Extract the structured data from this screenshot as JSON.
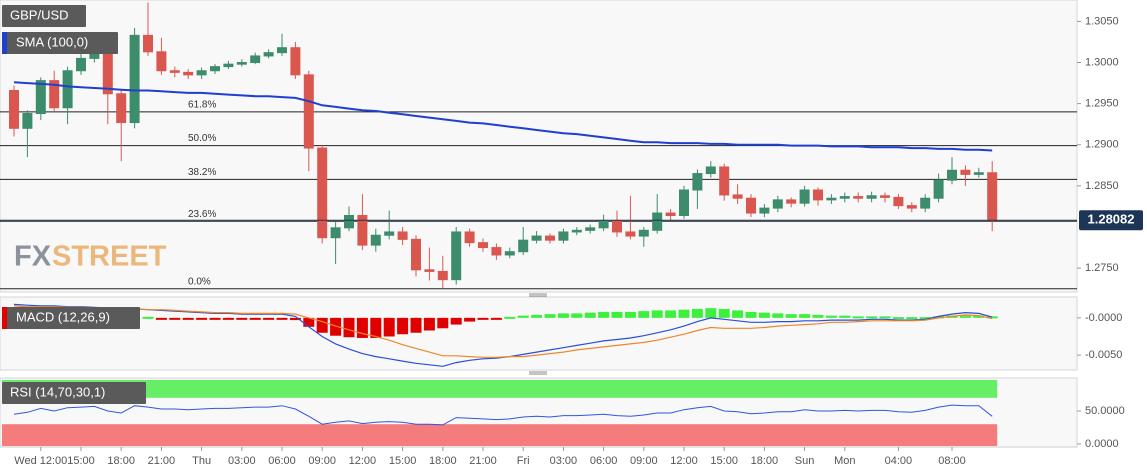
{
  "chart_data": [
    {
      "type": "candlestick",
      "title": "GBP/USD",
      "categories": [
        null,
        null,
        "Wed 12:00",
        null,
        null,
        "15:00",
        null,
        null,
        "18:00",
        null,
        null,
        "21:00",
        null,
        null,
        "Thu",
        null,
        null,
        "03:00",
        null,
        null,
        "06:00",
        null,
        null,
        "09:00",
        null,
        null,
        "12:00",
        null,
        null,
        "15:00",
        null,
        null,
        "18:00",
        null,
        null,
        "21:00",
        null,
        null,
        "Fri",
        null,
        null,
        "03:00",
        null,
        null,
        "06:00",
        null,
        null,
        "09:00",
        null,
        null,
        "12:00",
        null,
        null,
        "15:00",
        null,
        null,
        "18:00",
        null,
        null,
        "Sun",
        null,
        null,
        "Mon",
        null,
        null,
        null,
        "04:00",
        null,
        null,
        null,
        "08:00",
        null,
        null,
        null
      ],
      "open": [
        1.2966,
        1.292,
        1.2938,
        1.2978,
        1.2945,
        1.299,
        1.3005,
        1.3012,
        1.2962,
        1.2927,
        1.3033,
        1.3013,
        1.299,
        1.2988,
        1.2985,
        1.299,
        1.2995,
        1.2998,
        1.3,
        1.3008,
        1.3012,
        1.3018,
        1.2985,
        1.2896,
        1.2787,
        1.2799,
        1.2814,
        1.2778,
        1.279,
        1.2794,
        1.2785,
        1.2748,
        1.2746,
        1.2736,
        1.2794,
        1.2781,
        1.2775,
        1.2766,
        1.277,
        1.2784,
        1.2789,
        1.2784,
        1.2794,
        1.2796,
        1.2799,
        1.2808,
        1.2794,
        1.2789,
        1.2796,
        1.2817,
        1.2814,
        1.2845,
        1.2865,
        1.2873,
        1.2839,
        1.2835,
        1.2817,
        1.2823,
        1.2833,
        1.2829,
        1.2845,
        1.2833,
        1.2835,
        1.2837,
        1.2835,
        1.2838,
        1.2836,
        1.2826,
        1.2823,
        1.2835,
        1.2857,
        1.2869,
        1.2864,
        1.2866
      ],
      "high": [
        1.2972,
        1.2942,
        1.2982,
        1.299,
        1.2995,
        1.3012,
        1.302,
        1.3018,
        1.2968,
        1.3042,
        1.3073,
        1.303,
        1.2995,
        1.2992,
        1.2994,
        1.2998,
        1.3002,
        1.3004,
        1.3012,
        1.3016,
        1.3035,
        1.3025,
        1.299,
        1.29,
        1.2806,
        1.2825,
        1.284,
        1.2798,
        1.282,
        1.28,
        1.279,
        1.2775,
        1.2765,
        1.28,
        1.2798,
        1.2786,
        1.278,
        1.2775,
        1.28,
        1.2795,
        1.2792,
        1.2798,
        1.28,
        1.2803,
        1.2815,
        1.282,
        1.2838,
        1.28,
        1.284,
        1.2822,
        1.285,
        1.287,
        1.288,
        1.2877,
        1.2852,
        1.284,
        1.2828,
        1.2838,
        1.2836,
        1.285,
        1.2848,
        1.284,
        1.2842,
        1.2842,
        1.2843,
        1.2842,
        1.284,
        1.283,
        1.284,
        1.2865,
        1.2885,
        1.2875,
        1.2872,
        1.288
      ],
      "low": [
        1.291,
        1.2885,
        1.293,
        1.294,
        1.2925,
        1.2985,
        1.3,
        1.2925,
        1.288,
        1.292,
        1.3008,
        1.2985,
        1.2982,
        1.298,
        1.298,
        1.2986,
        1.2992,
        1.2995,
        1.2998,
        1.3005,
        1.3008,
        1.298,
        1.2868,
        1.278,
        1.2755,
        1.2795,
        1.2772,
        1.277,
        1.2785,
        1.2778,
        1.274,
        1.2735,
        1.2725,
        1.273,
        1.2776,
        1.277,
        1.276,
        1.2762,
        1.2766,
        1.278,
        1.278,
        1.278,
        1.279,
        1.2792,
        1.2795,
        1.2788,
        1.2785,
        1.2776,
        1.2792,
        1.2808,
        1.281,
        1.2822,
        1.286,
        1.2832,
        1.2828,
        1.2812,
        1.2812,
        1.2818,
        1.2824,
        1.2825,
        1.2826,
        1.2828,
        1.283,
        1.283,
        1.283,
        1.283,
        1.2822,
        1.2818,
        1.2818,
        1.283,
        1.2852,
        1.285,
        1.286,
        1.2795
      ],
      "close": [
        1.292,
        1.2938,
        1.2978,
        1.2945,
        1.299,
        1.3005,
        1.3012,
        1.2962,
        1.2927,
        1.3033,
        1.3013,
        1.299,
        1.2988,
        1.2985,
        1.299,
        1.2995,
        1.2998,
        1.3,
        1.3008,
        1.3012,
        1.3018,
        1.2985,
        1.2896,
        1.2787,
        1.2799,
        1.2814,
        1.2778,
        1.279,
        1.2794,
        1.2785,
        1.2748,
        1.2746,
        1.2736,
        1.2794,
        1.2781,
        1.2775,
        1.2766,
        1.277,
        1.2784,
        1.2789,
        1.2784,
        1.2794,
        1.2796,
        1.2799,
        1.2808,
        1.2794,
        1.2789,
        1.2796,
        1.2817,
        1.2814,
        1.2845,
        1.2865,
        1.2873,
        1.2839,
        1.2835,
        1.2817,
        1.2823,
        1.2833,
        1.2829,
        1.2845,
        1.2833,
        1.2835,
        1.2837,
        1.2835,
        1.2838,
        1.2836,
        1.2826,
        1.2823,
        1.2835,
        1.2857,
        1.2869,
        1.2864,
        1.2866,
        1.2808
      ],
      "up_color": "#3d8c6c",
      "down_color": "#d9574f",
      "series": [
        {
          "name": "SMA (100,0)",
          "color": "#1f3fcf",
          "values": [
            1.2976,
            1.2975,
            1.2974,
            1.2973,
            1.2971,
            1.297,
            1.2969,
            1.2968,
            1.2967,
            1.2966,
            1.2966,
            1.2965,
            1.2964,
            1.2963,
            1.2963,
            1.2962,
            1.2961,
            1.296,
            1.2959,
            1.2959,
            1.2958,
            1.2957,
            1.2953,
            1.2948,
            1.2946,
            1.2944,
            1.2942,
            1.2941,
            1.2939,
            1.2937,
            1.2935,
            1.2933,
            1.2931,
            1.2929,
            1.2927,
            1.2926,
            1.2924,
            1.2922,
            1.292,
            1.2918,
            1.2916,
            1.2914,
            1.2913,
            1.2911,
            1.2909,
            1.2907,
            1.2905,
            1.2903,
            1.2903,
            1.2902,
            1.2902,
            1.2902,
            1.2901,
            1.2901,
            1.29,
            1.29,
            1.29,
            1.29,
            1.2899,
            1.2899,
            1.2899,
            1.2898,
            1.2898,
            1.2898,
            1.2897,
            1.2897,
            1.2897,
            1.2896,
            1.2896,
            1.2895,
            1.2895,
            1.2894,
            1.2894,
            1.2893
          ]
        }
      ],
      "fib_levels": [
        {
          "value": 1.294,
          "label": "61.8%"
        },
        {
          "value": 1.2899,
          "label": "50.0%"
        },
        {
          "value": 1.2858,
          "label": "38.2%"
        },
        {
          "value": 1.2807,
          "label": "23.6%"
        },
        {
          "value": 1.2725,
          "label": "0.0%"
        }
      ],
      "last_price": {
        "value": 1.28082,
        "label": "1.28082"
      },
      "watermark": [
        "FX",
        "STREET"
      ],
      "ylim": [
        1.2721,
        1.3076
      ],
      "yticks": [
        {
          "value": 1.305,
          "label": "1.3050"
        },
        {
          "value": 1.3,
          "label": "1.3000"
        },
        {
          "value": 1.295,
          "label": "1.2950"
        },
        {
          "value": 1.29,
          "label": "1.2900"
        },
        {
          "value": 1.285,
          "label": "1.2850"
        },
        {
          "value": 1.275,
          "label": "1.2750"
        }
      ]
    },
    {
      "type": "macd",
      "title": "MACD (12,26,9)",
      "histogram": [
        0.0002,
        0.0002,
        0.0001,
        0.0001,
        0.0001,
        0.0001,
        0.0001,
        0,
        0,
        0,
        0,
        -0.0001,
        -0.0001,
        -0.0001,
        -0.0001,
        -0.0001,
        -0.0001,
        -0.0001,
        -0.0001,
        -0.0001,
        -0.0001,
        -0.0003,
        -0.0012,
        -0.002,
        -0.0024,
        -0.0026,
        -0.0027,
        -0.0027,
        -0.0025,
        -0.0022,
        -0.002,
        -0.0017,
        -0.0014,
        -0.0009,
        -0.0005,
        -0.0002,
        -0.0001,
        0,
        0.0003,
        0.0004,
        0.0005,
        0.0006,
        0.0006,
        0.0007,
        0.0008,
        0.0008,
        0.0008,
        0.0009,
        0.001,
        0.001,
        0.0011,
        0.0012,
        0.0013,
        0.0012,
        0.001,
        0.0008,
        0.0007,
        0.0006,
        0.0005,
        0.0005,
        0.0004,
        0.0003,
        0.0003,
        0.0002,
        0.0002,
        0.0002,
        0.0001,
        0.0001,
        0.0001,
        0.0002,
        0.0003,
        0.0003,
        0.0003,
        0.0002
      ],
      "up_color": "#3df03d",
      "down_color": "#e00000",
      "series": [
        {
          "color": "#2a4fd6",
          "values": [
            0.0018,
            0.0017,
            0.0016,
            0.0016,
            0.0015,
            0.0015,
            0.0014,
            0.0013,
            0.0012,
            0.0012,
            0.0011,
            0.001,
            0.0009,
            0.0008,
            0.0007,
            0.0006,
            0.0006,
            0.0005,
            0.0005,
            0.0005,
            0.0005,
            0.0002,
            -0.0012,
            -0.0025,
            -0.0035,
            -0.0042,
            -0.0048,
            -0.0052,
            -0.0055,
            -0.0058,
            -0.0061,
            -0.0063,
            -0.0065,
            -0.006,
            -0.0057,
            -0.0055,
            -0.0054,
            -0.0052,
            -0.0049,
            -0.0046,
            -0.0043,
            -0.004,
            -0.0037,
            -0.0034,
            -0.0031,
            -0.0029,
            -0.0027,
            -0.0024,
            -0.002,
            -0.0016,
            -0.0011,
            -0.0005,
            0,
            -0.0002,
            -0.0004,
            -0.0006,
            -0.0006,
            -0.0005,
            -0.0005,
            -0.0004,
            -0.0004,
            -0.0003,
            -0.0003,
            -0.0003,
            -0.0002,
            -0.0002,
            -0.0003,
            -0.0003,
            -0.0002,
            0.0002,
            0.0005,
            0.0007,
            0.0006,
            0.0001
          ]
        },
        {
          "color": "#f0862a",
          "values": [
            0.0016,
            0.0015,
            0.0015,
            0.0015,
            0.0014,
            0.0014,
            0.0013,
            0.0013,
            0.0012,
            0.0012,
            0.0011,
            0.0011,
            0.001,
            0.0009,
            0.0008,
            0.0007,
            0.0007,
            0.0006,
            0.0006,
            0.0006,
            0.0006,
            0.0005,
            0,
            -0.0005,
            -0.0011,
            -0.0016,
            -0.0021,
            -0.0025,
            -0.003,
            -0.0036,
            -0.0041,
            -0.0046,
            -0.0051,
            -0.0051,
            -0.0052,
            -0.0053,
            -0.0053,
            -0.0052,
            -0.0052,
            -0.005,
            -0.0048,
            -0.0046,
            -0.0043,
            -0.0041,
            -0.0039,
            -0.0037,
            -0.0035,
            -0.0033,
            -0.003,
            -0.0026,
            -0.0022,
            -0.0017,
            -0.0013,
            -0.0014,
            -0.0014,
            -0.0014,
            -0.0013,
            -0.0011,
            -0.001,
            -0.0009,
            -0.0008,
            -0.0006,
            -0.0006,
            -0.0005,
            -0.0004,
            -0.0004,
            -0.0004,
            -0.0004,
            -0.0003,
            0,
            0.0002,
            0.0004,
            0.0003,
            -0.0001
          ]
        }
      ],
      "ylim": [
        -0.007,
        0.0028
      ],
      "yticks": [
        {
          "value": 0,
          "label": "-0.0000"
        },
        {
          "value": -0.005,
          "label": "-0.0050"
        }
      ]
    },
    {
      "type": "rsi",
      "title": "RSI (14,70,30,1)",
      "levels": [
        70,
        30
      ],
      "level_colors": [
        "#66ee66",
        "#f47c7c"
      ],
      "series": [
        {
          "color": "#3355dd",
          "values": [
            45,
            48,
            54,
            50,
            55,
            56,
            57,
            50,
            47,
            58,
            56,
            53,
            53,
            52,
            53,
            54,
            54,
            55,
            56,
            56,
            58,
            53,
            42,
            30,
            33,
            35,
            31,
            33,
            34,
            33,
            30,
            30,
            29,
            40,
            39,
            38,
            37,
            38,
            41,
            42,
            41,
            43,
            43,
            44,
            45,
            43,
            42,
            44,
            47,
            47,
            52,
            55,
            57,
            50,
            49,
            46,
            47,
            49,
            49,
            52,
            50,
            50,
            51,
            50,
            51,
            51,
            49,
            48,
            51,
            56,
            59,
            58,
            58,
            42
          ]
        }
      ],
      "ylim": [
        -4.5,
        100
      ],
      "yticks": [
        {
          "value": 50,
          "label": "50.0000"
        },
        {
          "value": 0,
          "label": "0.0000"
        }
      ]
    }
  ]
}
